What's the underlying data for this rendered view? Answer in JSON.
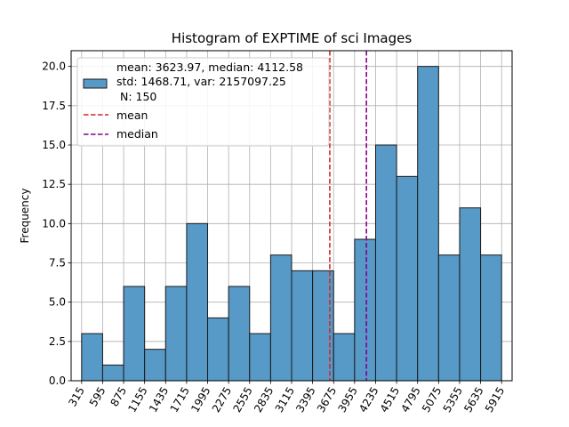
{
  "chart_data": {
    "type": "bar",
    "title": "Histogram of EXPTIME of sci Images",
    "xlabel": "",
    "ylabel": "Frequency",
    "bin_width": 280,
    "xlim": [
      175,
      6055
    ],
    "ylim": [
      0,
      21
    ],
    "x_ticks": [
      "315",
      "595",
      "875",
      "1155",
      "1435",
      "1715",
      "1995",
      "2275",
      "2555",
      "2835",
      "3115",
      "3395",
      "3675",
      "3955",
      "4235",
      "4515",
      "4795",
      "5075",
      "5355",
      "5635",
      "5915"
    ],
    "y_ticks": [
      "0.0",
      "2.5",
      "5.0",
      "7.5",
      "10.0",
      "12.5",
      "15.0",
      "17.5",
      "20.0"
    ],
    "bins": [
      {
        "start": 315,
        "value": 3
      },
      {
        "start": 595,
        "value": 1
      },
      {
        "start": 875,
        "value": 6
      },
      {
        "start": 1155,
        "value": 2
      },
      {
        "start": 1435,
        "value": 6
      },
      {
        "start": 1715,
        "value": 10
      },
      {
        "start": 1995,
        "value": 4
      },
      {
        "start": 2275,
        "value": 6
      },
      {
        "start": 2555,
        "value": 3
      },
      {
        "start": 2835,
        "value": 8
      },
      {
        "start": 3115,
        "value": 7
      },
      {
        "start": 3395,
        "value": 7
      },
      {
        "start": 3675,
        "value": 3
      },
      {
        "start": 3955,
        "value": 9
      },
      {
        "start": 4235,
        "value": 15
      },
      {
        "start": 4515,
        "value": 13
      },
      {
        "start": 4795,
        "value": 20
      },
      {
        "start": 5075,
        "value": 8
      },
      {
        "start": 5355,
        "value": 11
      },
      {
        "start": 5635,
        "value": 8
      }
    ],
    "mean": 3623.97,
    "median": 4112.58,
    "grid": true,
    "legend_position": "upper-left",
    "legend": {
      "stats_lines": [
        "mean: 3623.97, median: 4112.58",
        "std: 1468.71, var: 2157097.25",
        " N: 150"
      ],
      "mean_label": "mean",
      "median_label": "median"
    },
    "colors": {
      "bar_fill": "#5799c7",
      "bar_edge": "#1a1a1a",
      "mean_line": "#d62728",
      "median_line": "#8b008b",
      "grid": "#b0b0b0"
    }
  }
}
